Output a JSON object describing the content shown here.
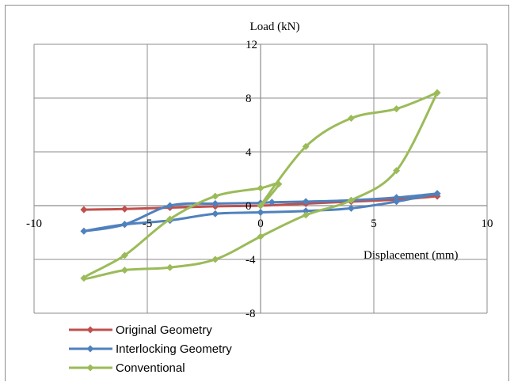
{
  "chart_data": {
    "type": "scatter",
    "title": "",
    "xlabel": "Displacement (mm)",
    "ylabel": "Load (kN)",
    "xlim": [
      -10,
      10
    ],
    "ylim": [
      -8,
      12
    ],
    "xticks": [
      -10,
      -5,
      0,
      5,
      10
    ],
    "yticks": [
      -8,
      -4,
      0,
      4,
      8,
      12
    ],
    "x_tick_labels": [
      "-10",
      "-5",
      "0",
      "5",
      "10"
    ],
    "y_tick_labels": [
      "-8",
      "-4",
      "0",
      "4",
      "8",
      "12"
    ],
    "grid": true,
    "legend_position": "bottom-left",
    "series": [
      {
        "name": "Original Geometry",
        "color": "#c0504d",
        "marker": "diamond",
        "smooth": true,
        "x": [
          -7.8,
          -6.0,
          -4.0,
          -2.0,
          0.0,
          2.0,
          4.0,
          6.0,
          7.8
        ],
        "y": [
          -0.3,
          -0.25,
          -0.15,
          -0.05,
          0.0,
          0.15,
          0.3,
          0.45,
          0.7
        ]
      },
      {
        "name": "Interlocking Geometry",
        "color": "#4f81bd",
        "marker": "diamond",
        "smooth": true,
        "x": [
          7.8,
          6.0,
          4.0,
          2.0,
          0.0,
          -2.0,
          -4.0,
          -6.0,
          -7.8,
          -6.0,
          -4.0,
          -2.0,
          0.0,
          0.5,
          2.0,
          4.0,
          6.0,
          7.8
        ],
        "y": [
          0.9,
          0.3,
          -0.2,
          -0.4,
          -0.5,
          -0.6,
          -1.1,
          -1.4,
          -1.9,
          -1.4,
          0.0,
          0.15,
          0.2,
          0.25,
          0.3,
          0.4,
          0.6,
          0.9
        ]
      },
      {
        "name": "Conventional",
        "color": "#9bbb59",
        "marker": "diamond",
        "smooth": true,
        "x": [
          7.8,
          6.0,
          4.0,
          2.0,
          0.0,
          -2.0,
          -4.0,
          -6.0,
          -7.8,
          -6.0,
          -4.0,
          -2.0,
          0.0,
          0.8,
          0.0,
          2.0,
          4.0,
          6.0,
          7.8
        ],
        "y": [
          8.4,
          2.6,
          0.4,
          -0.7,
          -2.3,
          -4.0,
          -4.6,
          -4.8,
          -5.4,
          -3.7,
          -1.0,
          0.7,
          1.3,
          1.6,
          0.0,
          4.4,
          6.5,
          7.2,
          8.4
        ]
      }
    ]
  }
}
